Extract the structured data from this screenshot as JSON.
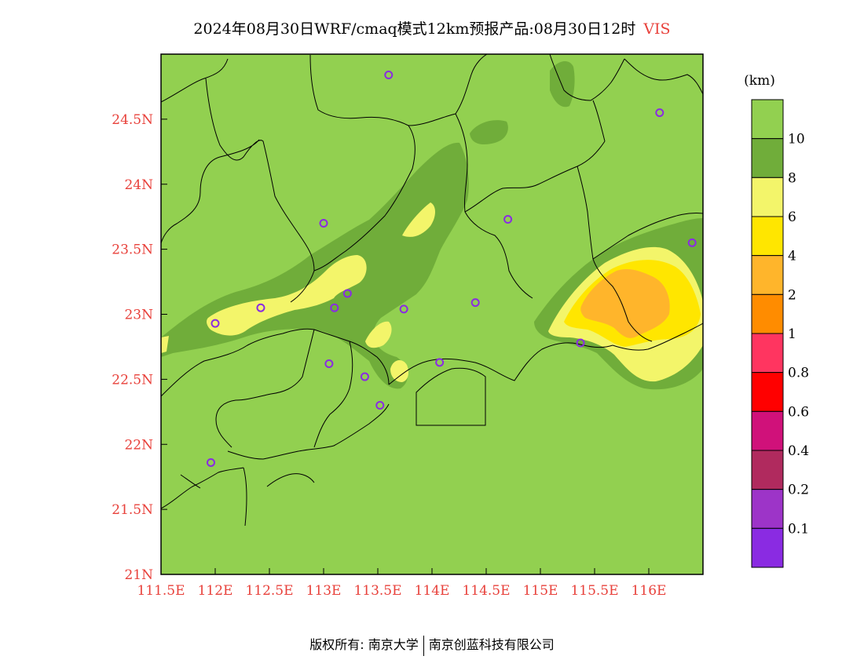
{
  "title": {
    "main": "2024年08月30日WRF/cmaq模式12km预报产品:08月30日12时",
    "variable": "VIS"
  },
  "map": {
    "lon_ticks": [
      "111.5E",
      "112E",
      "112.5E",
      "113E",
      "113.5E",
      "114E",
      "114.5E",
      "115E",
      "115.5E",
      "116E"
    ],
    "lat_ticks": [
      "21N",
      "21.5N",
      "22N",
      "22.5N",
      "23N",
      "23.5N",
      "24N",
      "24.5N"
    ],
    "background_color": "#92d050",
    "stations": [
      {
        "lon": 113.6,
        "lat": 24.84
      },
      {
        "lon": 116.1,
        "lat": 24.55
      },
      {
        "lon": 113.0,
        "lat": 23.7
      },
      {
        "lon": 114.7,
        "lat": 23.73
      },
      {
        "lon": 116.4,
        "lat": 23.55
      },
      {
        "lon": 113.22,
        "lat": 23.16
      },
      {
        "lon": 112.42,
        "lat": 23.05
      },
      {
        "lon": 113.1,
        "lat": 23.05
      },
      {
        "lon": 113.74,
        "lat": 23.04
      },
      {
        "lon": 114.4,
        "lat": 23.09
      },
      {
        "lon": 112.0,
        "lat": 22.93
      },
      {
        "lon": 115.37,
        "lat": 22.78
      },
      {
        "lon": 113.05,
        "lat": 22.62
      },
      {
        "lon": 114.07,
        "lat": 22.63
      },
      {
        "lon": 113.38,
        "lat": 22.52
      },
      {
        "lon": 113.52,
        "lat": 22.3
      },
      {
        "lon": 111.96,
        "lat": 21.86
      }
    ]
  },
  "colorbar": {
    "unit": "(km)",
    "colors": [
      "#92d050",
      "#70ad3a",
      "#f3f56a",
      "#ffe600",
      "#ffb52b",
      "#ff8c00",
      "#ff3560",
      "#ff0000",
      "#d0117a",
      "#b02a5e",
      "#9d34c8",
      "#8a2be2"
    ],
    "labels": [
      "10",
      "8",
      "6",
      "4",
      "2",
      "1",
      "0.8",
      "0.6",
      "0.4",
      "0.2",
      "0.1"
    ]
  },
  "footer": {
    "left": "版权所有: 南京大学",
    "right": "南京创蓝科技有限公司"
  }
}
